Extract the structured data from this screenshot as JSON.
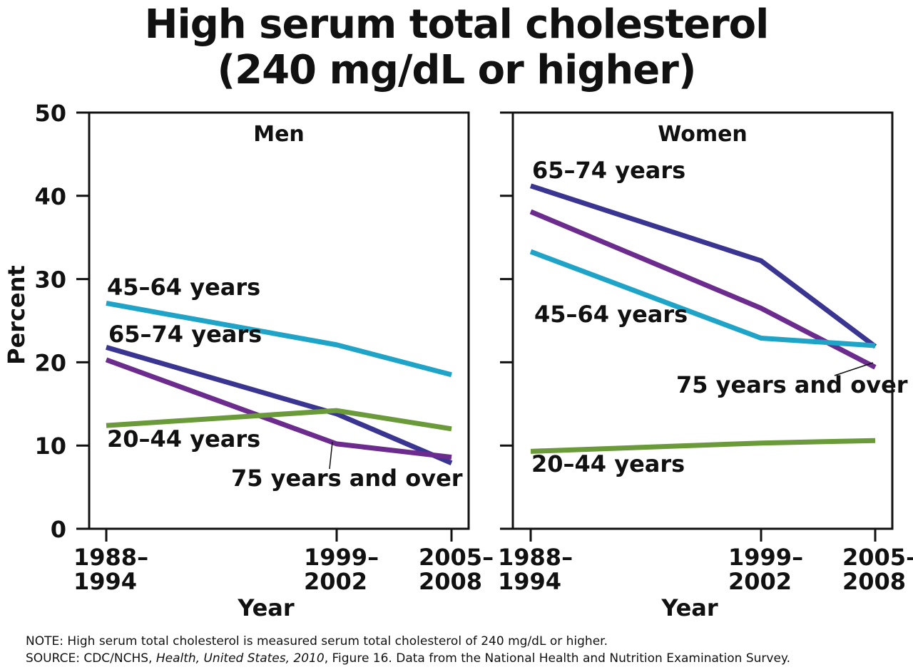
{
  "title_line1": "High serum total cholesterol",
  "title_line2": "(240 mg/dL or higher)",
  "note": "NOTE:  High serum total cholesterol is measured serum total cholesterol of 240 mg/dL or higher.",
  "source_prefix": "SOURCE: CDC/NCHS, ",
  "source_italic": "Health, United States, 2010",
  "source_suffix": ", Figure 16. Data from the National Health and Nutrition Examination Survey.",
  "colors": {
    "20-44": "#6a9a3a",
    "45-64": "#1fa4c8",
    "65-74": "#3b3592",
    "75+": "#6b2c8e"
  },
  "chart_data": [
    {
      "type": "line",
      "panel_title": "Men",
      "xlabel": "Year",
      "ylabel": "Percent",
      "ylim": [
        0,
        50
      ],
      "yticks": [
        0,
        10,
        20,
        30,
        40,
        50
      ],
      "categories": [
        "1988–1994",
        "1999–2002",
        "2005–2008"
      ],
      "category_lines": [
        [
          "1988–",
          "1994"
        ],
        [
          "1999–",
          "2002"
        ],
        [
          "2005–",
          "2008"
        ]
      ],
      "series": [
        {
          "name": "45–64 years",
          "key": "45-64",
          "values": [
            27.1,
            22.1,
            18.5
          ]
        },
        {
          "name": "65–74 years",
          "key": "65-74",
          "values": [
            21.8,
            13.8,
            7.9
          ]
        },
        {
          "name": "75 years and over",
          "key": "75+",
          "values": [
            20.3,
            10.2,
            8.6
          ]
        },
        {
          "name": "20–44 years",
          "key": "20-44",
          "values": [
            12.4,
            14.2,
            12.0
          ]
        }
      ]
    },
    {
      "type": "line",
      "panel_title": "Women",
      "xlabel": "Year",
      "ylabel": "",
      "ylim": [
        0,
        50
      ],
      "yticks": [
        0,
        10,
        20,
        30,
        40,
        50
      ],
      "categories": [
        "1988–1994",
        "1999–2002",
        "2005–2008"
      ],
      "category_lines": [
        [
          "1988–",
          "1994"
        ],
        [
          "1999–",
          "2002"
        ],
        [
          "2005–",
          "2008"
        ]
      ],
      "series": [
        {
          "name": "65–74 years",
          "key": "65-74",
          "values": [
            41.2,
            32.2,
            21.9
          ]
        },
        {
          "name": "75 years and over",
          "key": "75+",
          "values": [
            38.1,
            26.5,
            19.4
          ]
        },
        {
          "name": "45–64 years",
          "key": "45-64",
          "values": [
            33.3,
            22.9,
            22.0
          ]
        },
        {
          "name": "20–44 years",
          "key": "20-44",
          "values": [
            9.3,
            10.3,
            10.6
          ]
        }
      ]
    }
  ]
}
